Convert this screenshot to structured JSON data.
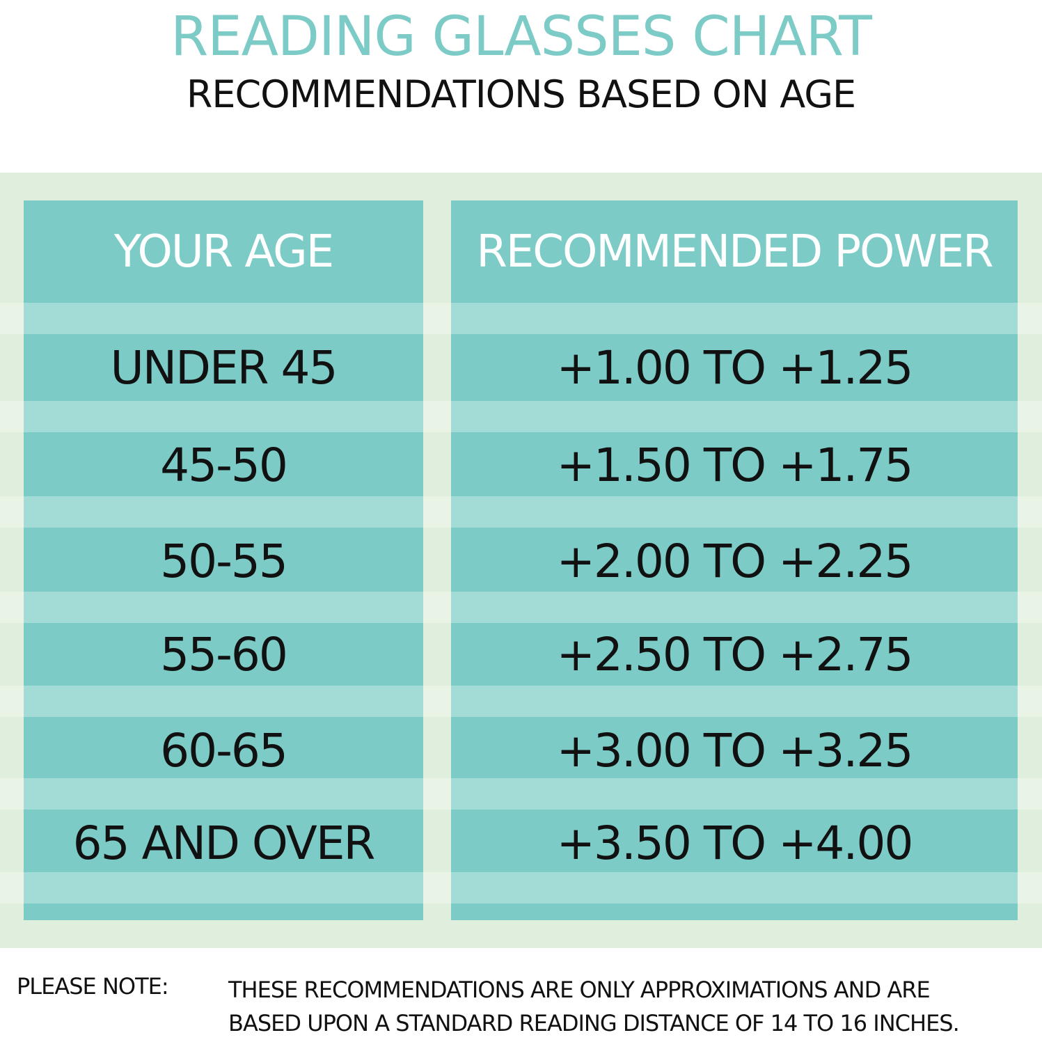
{
  "title": "READING GLASSES CHART",
  "subtitle": "RECOMMENDATIONS BASED ON AGE",
  "colors": {
    "accent": "#7ccbc6",
    "stripe": "#a3dbd6",
    "background": "#dfeedd"
  },
  "table": {
    "headers": [
      "YOUR AGE",
      "RECOMMENDED POWER"
    ],
    "rows": [
      {
        "age": "UNDER 45",
        "power": "+1.00 TO +1.25"
      },
      {
        "age": "45-50",
        "power": "+1.50 TO +1.75"
      },
      {
        "age": "50-55",
        "power": "+2.00 TO +2.25"
      },
      {
        "age": "55-60",
        "power": "+2.50 TO +2.75"
      },
      {
        "age": "60-65",
        "power": "+3.00 TO +3.25"
      },
      {
        "age": "65 AND OVER",
        "power": "+3.50 TO +4.00"
      }
    ]
  },
  "note": {
    "label": "PLEASE NOTE:",
    "line1": "THESE RECOMMENDATIONS ARE ONLY APPROXIMATIONS AND ARE",
    "line2": "BASED UPON A STANDARD READING DISTANCE OF 14 TO 16 INCHES."
  }
}
